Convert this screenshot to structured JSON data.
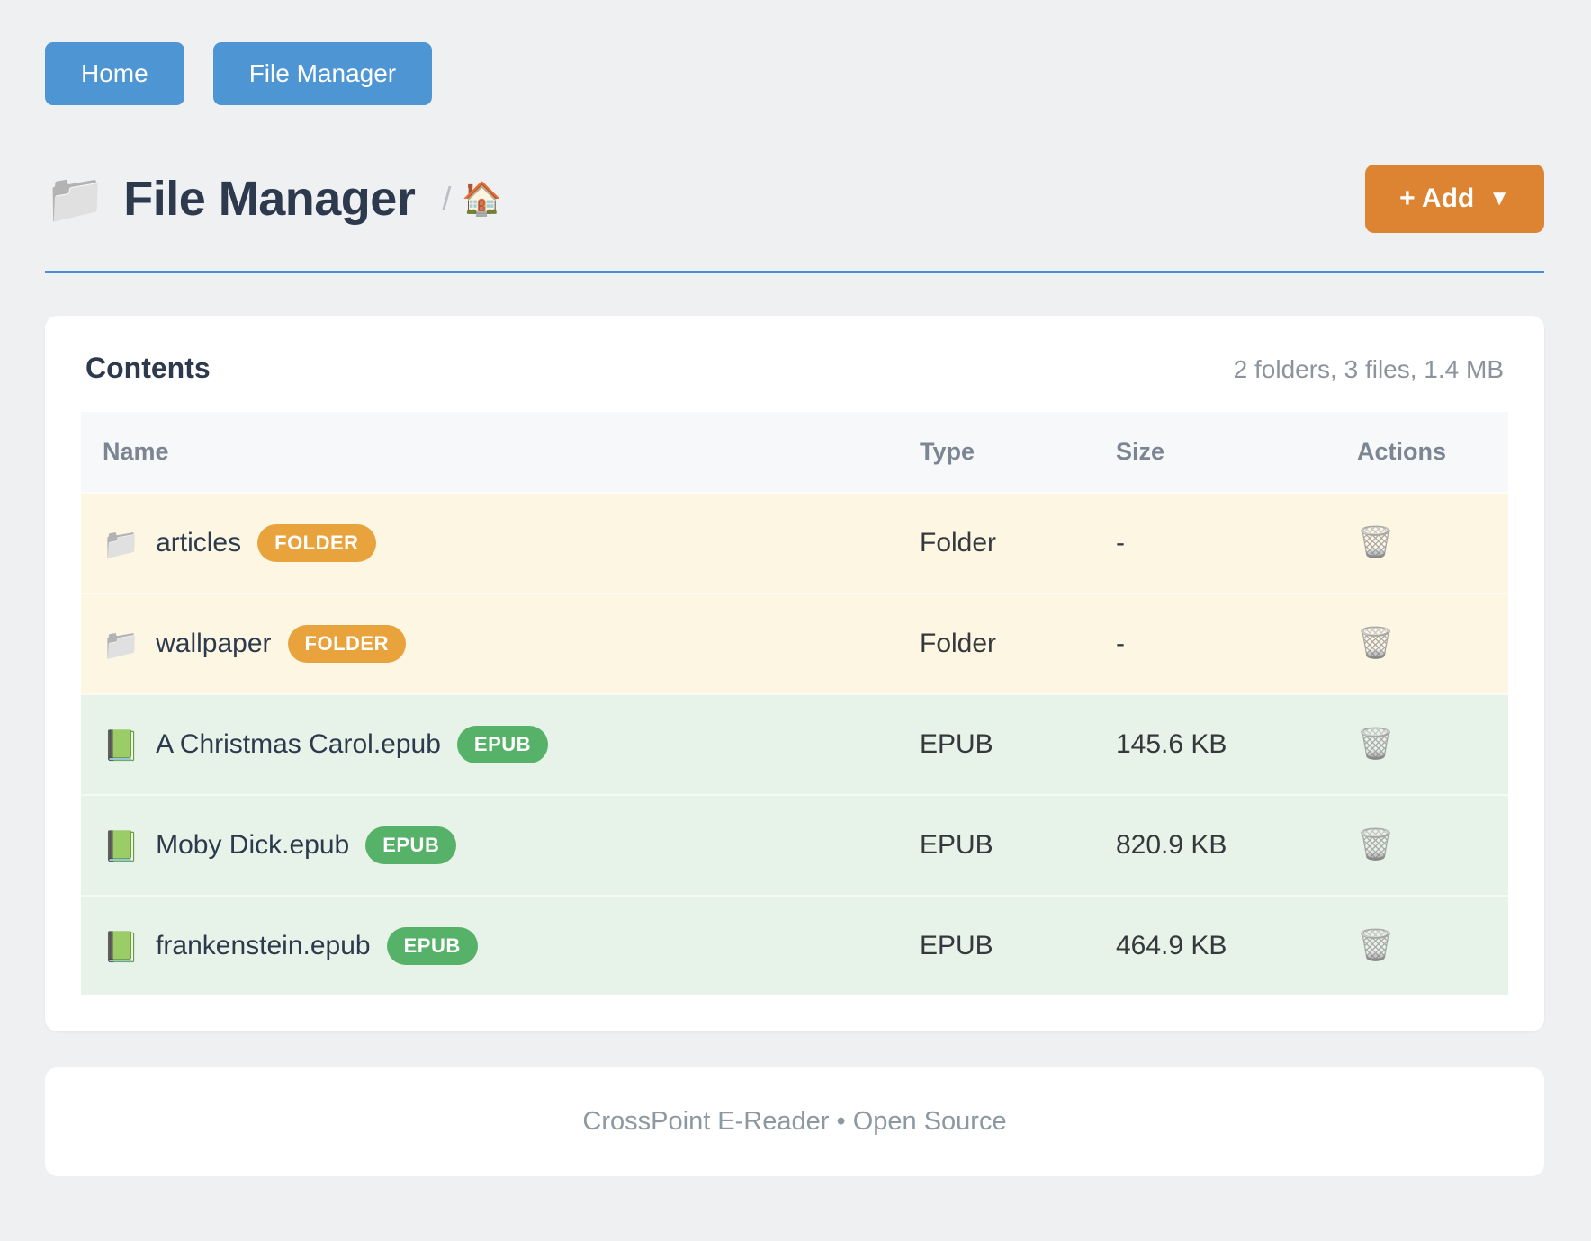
{
  "nav": {
    "home_label": "Home",
    "file_manager_label": "File Manager"
  },
  "header": {
    "folder_icon": "📁",
    "title": "File Manager",
    "breadcrumb_separator": "/",
    "breadcrumb_home_icon": "🏠",
    "add_label": "+ Add",
    "add_caret": "▼"
  },
  "panel": {
    "title": "Contents",
    "summary": "2 folders, 3 files, 1.4 MB",
    "columns": [
      "Name",
      "Type",
      "Size",
      "Actions"
    ],
    "action_icon": "🗑️",
    "rows": [
      {
        "icon": "📁",
        "name": "articles",
        "badge": "FOLDER",
        "kind": "folder",
        "type": "Folder",
        "size": "-"
      },
      {
        "icon": "📁",
        "name": "wallpaper",
        "badge": "FOLDER",
        "kind": "folder",
        "type": "Folder",
        "size": "-"
      },
      {
        "icon": "📗",
        "name": "A Christmas Carol.epub",
        "badge": "EPUB",
        "kind": "epub",
        "type": "EPUB",
        "size": "145.6 KB"
      },
      {
        "icon": "📗",
        "name": "Moby Dick.epub",
        "badge": "EPUB",
        "kind": "epub",
        "type": "EPUB",
        "size": "820.9 KB"
      },
      {
        "icon": "📗",
        "name": "frankenstein.epub",
        "badge": "EPUB",
        "kind": "epub",
        "type": "EPUB",
        "size": "464.9 KB"
      }
    ]
  },
  "footer": {
    "text": "CrossPoint E-Reader • Open Source"
  },
  "colors": {
    "nav_button": "#4e95d4",
    "accent_divider": "#4a90d9",
    "add_button": "#dd8433",
    "folder_row_bg": "#fdf6e3",
    "epub_row_bg": "#e7f2e8",
    "folder_badge": "#e8a33d",
    "epub_badge": "#57b269",
    "title_text": "#2d3a4d",
    "muted_text": "#8b949c"
  }
}
